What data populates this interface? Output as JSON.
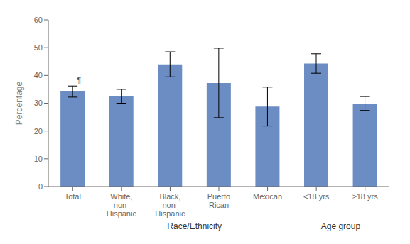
{
  "chart_data": {
    "type": "bar",
    "categories": [
      "Total",
      "White,\nnon-\nHispanic",
      "Black,\nnon-\nHispanic",
      "Puerto\nRican",
      "Mexican",
      "<18 yrs",
      "≥18 yrs"
    ],
    "values": [
      34.2,
      32.5,
      44.0,
      37.3,
      28.8,
      44.3,
      29.9
    ],
    "errors": [
      2.0,
      2.5,
      4.5,
      12.5,
      7.0,
      3.5,
      2.5
    ],
    "color": "#6B8DC4",
    "ylabel": "Percentage",
    "ylim": [
      0,
      60
    ],
    "yticks": [
      0,
      10,
      20,
      30,
      40,
      50,
      60
    ],
    "grid": false,
    "annotations": [
      {
        "text": "¶",
        "category": "Total"
      },
      {
        "text": "Race/Ethnicity",
        "categories": [
          "White,\nnon-\nHispanic",
          "Black,\nnon-\nHispanic",
          "Puerto\nRican",
          "Mexican"
        ]
      },
      {
        "text": "Age group",
        "categories": [
          "<18 yrs",
          "≥18 yrs"
        ]
      }
    ]
  }
}
